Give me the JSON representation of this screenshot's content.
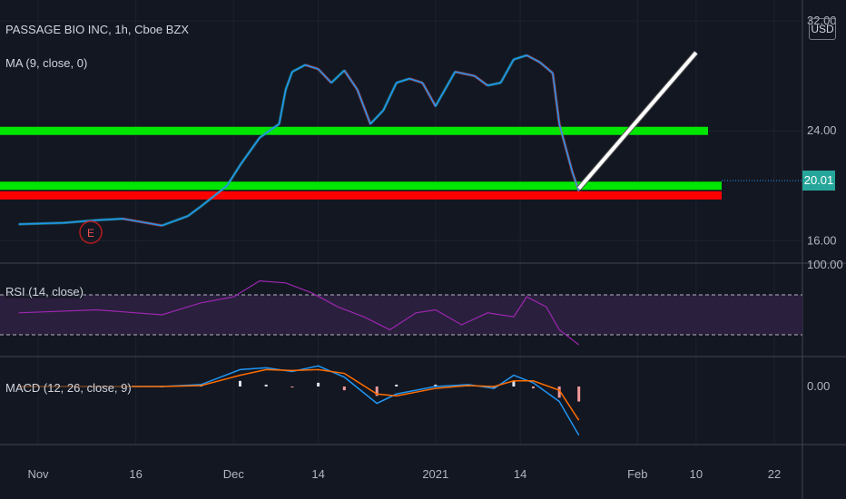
{
  "header": {
    "symbol_label": "PASSAGE BIO INC, 1h, Cboe BZX",
    "ma_label": "MA (9, close, 0)",
    "currency": "USD",
    "last_price": "20.01"
  },
  "panes": {
    "rsi_label": "RSI (14, close)",
    "macd_label": "MACD (12, 26, close, 9)"
  },
  "colors": {
    "background": "#131722",
    "ma_line": "#2196f3",
    "up_candle": "#26a69a",
    "down_candle": "#ef5350",
    "support_lines": "#00e600",
    "red_line": "#ff0000",
    "trend_arrow": "#ffffff",
    "rsi_line": "#9c27b0",
    "rsi_band": "#2a1f3d",
    "macd_line": "#2196f3",
    "signal_line": "#ff6d00",
    "last_price_bg": "#26a69a"
  },
  "chart_data": [
    {
      "type": "line",
      "pane": "price",
      "y_axis_ticks": [
        "32.00",
        "24.00",
        "16.00"
      ],
      "y_axis_values": [
        32,
        24,
        16
      ],
      "ylim": [
        14.5,
        33
      ],
      "x_axis_ticks": [
        "Nov",
        "16",
        "Dec",
        "14",
        "2021",
        "14",
        "Feb",
        "10",
        "22"
      ],
      "x_axis_dates": [
        "2020-11-01",
        "2020-11-16",
        "2020-12-01",
        "2020-12-14",
        "2021-01-01",
        "2021-01-14",
        "2021-02-01",
        "2021-02-10",
        "2021-02-22"
      ],
      "series": [
        {
          "x": [
            "2020-10-29",
            "2020-11-05",
            "2020-11-10",
            "2020-11-14",
            "2020-11-20",
            "2020-11-24",
            "2020-11-26",
            "2020-11-30",
            "2020-12-02",
            "2020-12-05",
            "2020-12-08",
            "2020-12-09",
            "2020-12-10",
            "2020-12-12",
            "2020-12-14",
            "2020-12-16",
            "2020-12-18",
            "2020-12-20",
            "2020-12-22",
            "2020-12-24",
            "2020-12-26",
            "2020-12-28",
            "2020-12-30",
            "2021-01-01",
            "2021-01-04",
            "2021-01-07",
            "2021-01-09",
            "2021-01-11",
            "2021-01-13",
            "2021-01-15",
            "2021-01-17",
            "2021-01-19",
            "2021-01-20",
            "2021-01-22",
            "2021-01-23"
          ],
          "values": [
            17.2,
            17.3,
            17.5,
            17.6,
            17.1,
            17.8,
            18.5,
            20.0,
            21.5,
            23.5,
            24.5,
            27.0,
            28.3,
            28.8,
            28.5,
            27.5,
            28.4,
            27.0,
            24.5,
            25.5,
            27.5,
            27.8,
            27.5,
            25.8,
            28.3,
            28.0,
            27.3,
            27.5,
            29.2,
            29.5,
            29.0,
            28.2,
            24.5,
            21.0,
            19.6
          ]
        }
      ],
      "horizontal_lines": [
        {
          "value": 24.0,
          "color": "green"
        },
        {
          "value": 20.0,
          "color": "green"
        },
        {
          "value": 19.3,
          "color": "red"
        }
      ],
      "trend_arrow": {
        "x": [
          "2021-01-23",
          "2021-02-10"
        ],
        "y": [
          19.8,
          29.7
        ]
      },
      "event_marker": "E"
    },
    {
      "type": "line",
      "pane": "rsi",
      "y_axis_ticks": [
        "100.00"
      ],
      "band": [
        30,
        70
      ],
      "x": [
        "2020-10-29",
        "2020-11-10",
        "2020-11-20",
        "2020-11-26",
        "2020-12-01",
        "2020-12-05",
        "2020-12-09",
        "2020-12-13",
        "2020-12-17",
        "2020-12-21",
        "2020-12-25",
        "2020-12-29",
        "2021-01-01",
        "2021-01-05",
        "2021-01-09",
        "2021-01-13",
        "2021-01-15",
        "2021-01-18",
        "2021-01-20",
        "2021-01-23"
      ],
      "values": [
        52,
        55,
        50,
        62,
        68,
        84,
        82,
        72,
        58,
        48,
        35,
        52,
        55,
        40,
        52,
        48,
        68,
        58,
        35,
        20
      ]
    },
    {
      "type": "line",
      "pane": "macd",
      "y_axis_ticks": [
        "0.00"
      ],
      "series": [
        {
          "name": "MACD",
          "x": [
            "2020-10-29",
            "2020-11-20",
            "2020-11-26",
            "2020-12-02",
            "2020-12-06",
            "2020-12-10",
            "2020-12-14",
            "2020-12-18",
            "2020-12-23",
            "2020-12-26",
            "2021-01-01",
            "2021-01-06",
            "2021-01-10",
            "2021-01-13",
            "2021-01-16",
            "2021-01-20",
            "2021-01-23"
          ],
          "values": [
            0.0,
            0.0,
            0.1,
            0.9,
            1.0,
            0.8,
            1.1,
            0.5,
            -0.9,
            -0.4,
            0.0,
            0.1,
            -0.1,
            0.6,
            0.2,
            -0.8,
            -2.6
          ]
        },
        {
          "name": "Signal",
          "x": [
            "2020-10-29",
            "2020-11-20",
            "2020-11-26",
            "2020-12-02",
            "2020-12-06",
            "2020-12-10",
            "2020-12-14",
            "2020-12-18",
            "2020-12-23",
            "2020-12-26",
            "2021-01-01",
            "2021-01-06",
            "2021-01-10",
            "2021-01-13",
            "2021-01-16",
            "2021-01-20",
            "2021-01-23"
          ],
          "values": [
            0.0,
            0.0,
            0.05,
            0.6,
            0.9,
            0.85,
            0.9,
            0.7,
            -0.4,
            -0.5,
            -0.1,
            0.05,
            0.0,
            0.3,
            0.3,
            -0.2,
            -1.8
          ]
        }
      ]
    }
  ]
}
